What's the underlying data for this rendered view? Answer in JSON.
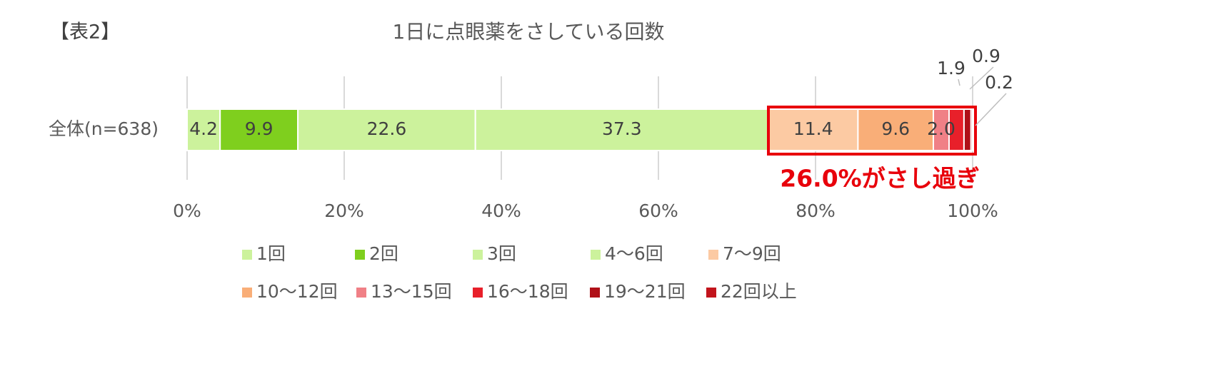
{
  "chart_data": {
    "type": "stacked-bar-horizontal",
    "label": "【表2】",
    "title": "1日に点眼薬をさしている回数",
    "categories": [
      "全体(n=638)"
    ],
    "series": [
      {
        "name": "1回",
        "color": "#ccf29c",
        "values": [
          4.2
        ]
      },
      {
        "name": "2回",
        "color": "#7fcf1e",
        "values": [
          9.9
        ]
      },
      {
        "name": "3回",
        "color": "#ccf29c",
        "values": [
          22.6
        ]
      },
      {
        "name": "4～6回",
        "color": "#ccf29c",
        "values": [
          37.3
        ]
      },
      {
        "name": "7～9回",
        "color": "#fccaa3",
        "values": [
          11.4
        ]
      },
      {
        "name": "10～12回",
        "color": "#f9ae78",
        "values": [
          9.6
        ]
      },
      {
        "name": "13～15回",
        "color": "#f08086",
        "values": [
          2.0
        ],
        "value_labels": [
          "2.0"
        ]
      },
      {
        "name": "16～18回",
        "color": "#e8202a",
        "values": [
          1.9
        ]
      },
      {
        "name": "19～21回",
        "color": "#b01018",
        "values": [
          0.9
        ]
      },
      {
        "name": "22回以上",
        "color": "#c2141c",
        "values": [
          0.2
        ]
      }
    ],
    "xlim": [
      0,
      100
    ],
    "xticks": [
      {
        "value": 0,
        "label": "0%"
      },
      {
        "value": 20,
        "label": "20%"
      },
      {
        "value": 40,
        "label": "40%"
      },
      {
        "value": 60,
        "label": "60%"
      },
      {
        "value": 80,
        "label": "80%"
      },
      {
        "value": 100,
        "label": "100%"
      }
    ],
    "grid": true,
    "annotation": "26.0%がさし過ぎ"
  }
}
